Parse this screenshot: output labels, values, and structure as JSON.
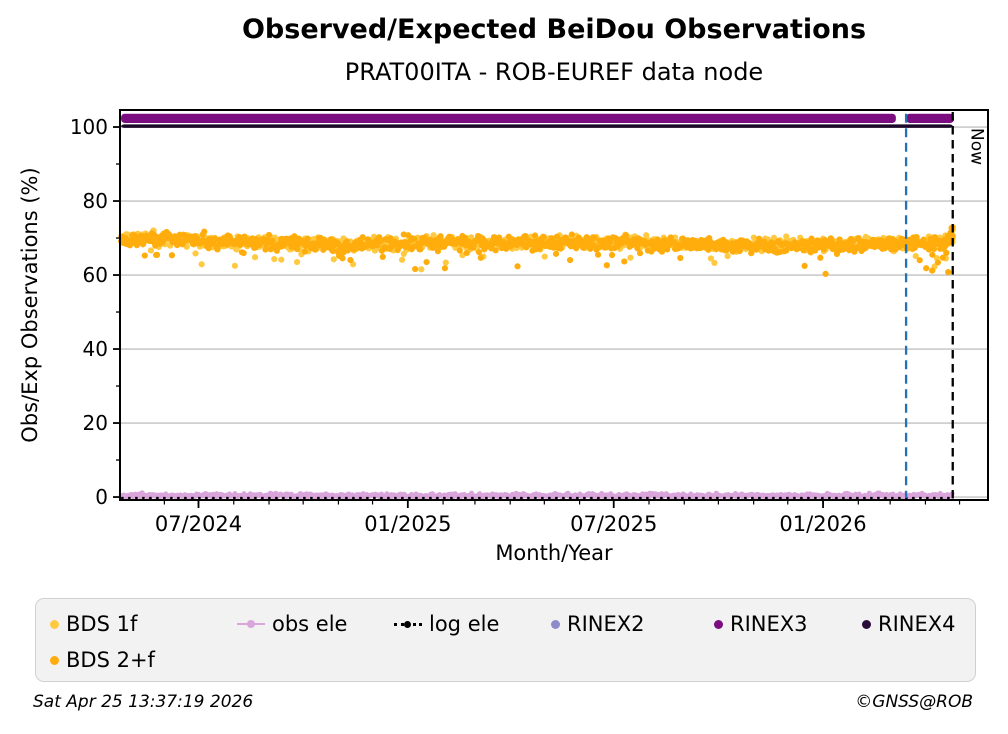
{
  "title": "Observed/Expected BeiDou Observations",
  "subtitle": "PRAT00ITA - ROB-EUREF data node",
  "footer": {
    "timestamp": "Sat Apr 25 13:37:19 2026",
    "credit": "©GNSS@ROB"
  },
  "chart_data": {
    "type": "scatter",
    "title": "Observed/Expected BeiDou Observations",
    "subtitle": "PRAT00ITA - ROB-EUREF data node",
    "xlabel": "Month/Year",
    "ylabel": "Obs/Exp Observations (%)",
    "x_range": [
      "2024-04-23",
      "2026-05-26"
    ],
    "y_range": [
      -0.8,
      104.6
    ],
    "y_major_ticks": [
      0,
      20,
      40,
      60,
      80,
      100
    ],
    "y_minor_ticks": [
      10,
      30,
      50,
      70,
      90
    ],
    "x_major_ticks": [
      {
        "label": "07/2024",
        "date": "2024-07-01"
      },
      {
        "label": "01/2025",
        "date": "2025-01-01"
      },
      {
        "label": "07/2025",
        "date": "2025-07-01"
      },
      {
        "label": "01/2026",
        "date": "2026-01-01"
      }
    ],
    "x_minor_tick_interval": "month",
    "grid": {
      "horizontal": true,
      "color": "#b3b3b3"
    },
    "now_line": {
      "date": "2026-04-25",
      "label": "Now",
      "color": "#000000",
      "style": "dashed"
    },
    "marker_line": {
      "date": "2026-03-15",
      "color": "#2272b4",
      "style": "dashed"
    },
    "series": [
      {
        "name": "BDS 1f",
        "type": "scatter",
        "color": "#ffc942",
        "seed": 11,
        "start": "2024-04-24",
        "end": "2026-04-25",
        "per_day": 1.3,
        "spread": 0.85,
        "low_outlier_rate": 0.028,
        "low_outlier_depth": [
          1.8,
          6.2
        ],
        "mean_trend": [
          [
            "2024-04-24",
            70.1
          ],
          [
            "2024-06-15",
            69.8
          ],
          [
            "2024-08-01",
            69.1
          ],
          [
            "2024-09-15",
            68.7
          ],
          [
            "2024-11-01",
            68.3
          ],
          [
            "2024-12-15",
            68.6
          ],
          [
            "2025-02-01",
            68.9
          ],
          [
            "2025-03-15",
            68.6
          ],
          [
            "2025-05-01",
            68.9
          ],
          [
            "2025-06-15",
            69.0
          ],
          [
            "2025-08-01",
            68.7
          ],
          [
            "2025-09-15",
            68.4
          ],
          [
            "2025-11-01",
            68.2
          ],
          [
            "2025-12-15",
            68.4
          ],
          [
            "2026-02-01",
            68.5
          ],
          [
            "2026-03-15",
            68.7
          ],
          [
            "2026-04-18",
            69.0
          ],
          [
            "2026-04-25",
            70.3
          ]
        ],
        "extra_points": [
          [
            "2026-04-09",
            62.3
          ],
          [
            "2026-04-19",
            64.5
          ],
          [
            "2026-04-24",
            71.8
          ],
          [
            "2026-04-25",
            72.2
          ]
        ]
      },
      {
        "name": "BDS 2+f",
        "type": "scatter",
        "color": "#ffad0d",
        "seed": 22,
        "start": "2024-04-24",
        "end": "2026-04-25",
        "per_day": 1.3,
        "spread": 0.9,
        "low_outlier_rate": 0.03,
        "low_outlier_depth": [
          1.8,
          6.5
        ],
        "mean_trend": [
          [
            "2024-04-24",
            69.9
          ],
          [
            "2024-06-15",
            69.6
          ],
          [
            "2024-08-01",
            68.9
          ],
          [
            "2024-09-15",
            68.5
          ],
          [
            "2024-11-01",
            68.1
          ],
          [
            "2024-12-15",
            68.4
          ],
          [
            "2025-02-01",
            68.7
          ],
          [
            "2025-03-15",
            68.4
          ],
          [
            "2025-05-01",
            68.7
          ],
          [
            "2025-06-15",
            68.8
          ],
          [
            "2025-08-01",
            68.5
          ],
          [
            "2025-09-15",
            68.2
          ],
          [
            "2025-11-01",
            68.0
          ],
          [
            "2025-12-15",
            68.2
          ],
          [
            "2026-02-01",
            68.3
          ],
          [
            "2026-03-15",
            68.5
          ],
          [
            "2026-04-18",
            68.8
          ],
          [
            "2026-04-25",
            70.0
          ]
        ],
        "extra_points": [
          [
            "2026-03-27",
            64.0
          ],
          [
            "2026-04-07",
            61.2
          ],
          [
            "2026-04-12",
            63.4
          ],
          [
            "2026-04-21",
            60.8
          ],
          [
            "2026-04-22",
            69.9
          ],
          [
            "2026-04-23",
            71.4
          ],
          [
            "2026-04-24",
            72.7
          ],
          [
            "2026-04-25",
            72.9
          ],
          [
            "2026-04-25",
            70.6
          ]
        ]
      },
      {
        "name": "obs ele",
        "type": "scatter-floor",
        "color": "#d9a5db",
        "seed": 33,
        "start": "2024-04-24",
        "end": "2026-04-25",
        "per_day": 1.25,
        "level": 0.3
      },
      {
        "name": "log ele",
        "type": "dotted-line",
        "color": "#000000",
        "level": 0,
        "start": "2024-04-24",
        "end": "2026-04-25"
      },
      {
        "name": "RINEX2",
        "type": "dashed-row",
        "color": "#a08fd2",
        "legend_color": "#8e8bcb",
        "level": 102.35,
        "segments": [
          [
            "2024-04-24",
            "2026-03-06"
          ],
          [
            "2026-03-15",
            "2026-04-26"
          ]
        ]
      },
      {
        "name": "RINEX3",
        "type": "band",
        "color": "#7b0d80",
        "level": 102.35,
        "half_width": 1.25,
        "segments": [
          [
            "2024-04-24",
            "2026-03-06"
          ],
          [
            "2026-03-15",
            "2026-04-26"
          ]
        ]
      },
      {
        "name": "RINEX4",
        "type": "band",
        "color": "#1c0929",
        "level": 100.25,
        "half_width": 0.48,
        "segments": [
          [
            "2024-04-24",
            "2026-04-25"
          ]
        ]
      }
    ],
    "legend": {
      "rows": [
        [
          {
            "label": "BDS 1f",
            "marker": "dot",
            "color": "#ffc942"
          },
          {
            "label": "obs ele",
            "marker": "line-dot",
            "color": "#d9a5db"
          },
          {
            "label": "log ele",
            "marker": "dotted-line-dot",
            "color": "#000000"
          },
          {
            "label": "RINEX2",
            "marker": "dot",
            "color": "#8e8bcb"
          },
          {
            "label": "RINEX3",
            "marker": "dot",
            "color": "#7b0d80"
          },
          {
            "label": "RINEX4",
            "marker": "dot",
            "color": "#2a0c3a"
          }
        ],
        [
          {
            "label": "BDS 2+f",
            "marker": "dot",
            "color": "#ffad0d"
          }
        ]
      ]
    }
  }
}
